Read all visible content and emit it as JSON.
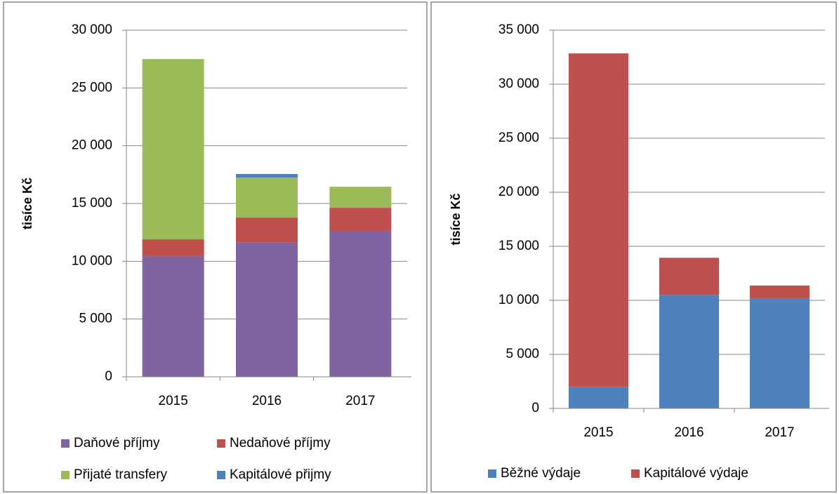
{
  "chart_data": [
    {
      "type": "bar",
      "stacked": true,
      "y_label": "tisíce Kč",
      "categories": [
        "2015",
        "2016",
        "2017"
      ],
      "series": [
        {
          "name": "Daňové příjmy",
          "color": "#8064a2",
          "values": [
            10450,
            11650,
            12570
          ]
        },
        {
          "name": "Nedaňové příjmy",
          "color": "#c0504d",
          "values": [
            1450,
            2130,
            2060
          ]
        },
        {
          "name": "Přijaté transfery",
          "color": "#9bbb59",
          "values": [
            15600,
            3460,
            1820
          ]
        },
        {
          "name": "Kapitálové přijmy",
          "color": "#4f81bd",
          "values": [
            0,
            310,
            0
          ]
        }
      ],
      "ylim": [
        0,
        30000
      ],
      "yticks": [
        0,
        {
          "value": 5000,
          "label": "5 000"
        },
        {
          "value": 10000,
          "label": "10 000"
        },
        {
          "value": 15000,
          "label": "15 000"
        },
        {
          "value": 20000,
          "label": "20 000"
        },
        {
          "value": 25000,
          "label": "25 000"
        },
        {
          "value": 30000,
          "label": "30 000"
        }
      ],
      "grid": true
    },
    {
      "type": "bar",
      "stacked": true,
      "y_label": "tisíce Kč",
      "categories": [
        "2015",
        "2016",
        "2017"
      ],
      "series": [
        {
          "name": "Běžné výdaje",
          "color": "#4f81bd",
          "values": [
            2000,
            10500,
            10200
          ]
        },
        {
          "name": "Kapitálové výdaje",
          "color": "#c0504d",
          "values": [
            30850,
            3440,
            1170
          ]
        }
      ],
      "ylim": [
        0,
        35000
      ],
      "yticks": [
        0,
        {
          "value": 5000,
          "label": "5 000"
        },
        {
          "value": 10000,
          "label": "10 000"
        },
        {
          "value": 15000,
          "label": "15 000"
        },
        {
          "value": 20000,
          "label": "20 000"
        },
        {
          "value": 25000,
          "label": "25 000"
        },
        {
          "value": 30000,
          "label": "30 000"
        },
        {
          "value": 35000,
          "label": "35 000"
        }
      ],
      "grid": true
    }
  ]
}
